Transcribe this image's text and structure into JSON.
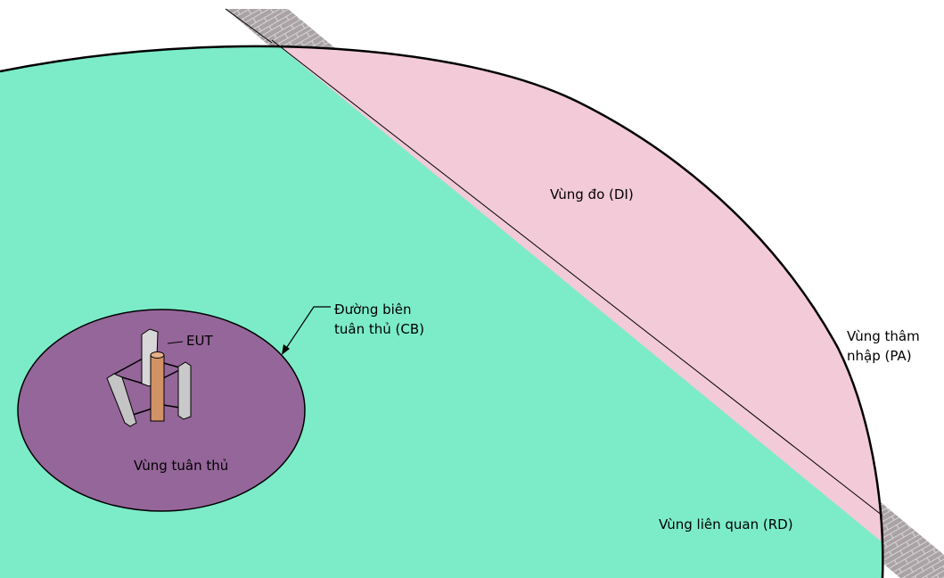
{
  "labels": {
    "measurement_area": "Vùng đo (DI)",
    "penetration_area_line1": "Vùng thâm",
    "penetration_area_line2": "nhập (PA)",
    "compliance_boundary_line1": "Đường biên",
    "compliance_boundary_line2": "tuân thủ (CB)",
    "eut": "EUT",
    "compliance_area": "Vùng tuân thủ",
    "relevant_domain": "Vùng liên quan (RD)"
  },
  "colors": {
    "relevant_domain": "#7cecc8",
    "measurement_area": "#f2cad8",
    "penetration_area": "#a9a3a5",
    "compliance_area": "#95669a",
    "antenna_mast": "#d19266",
    "antenna_panel": "#c9c9c9",
    "outline": "#000000"
  }
}
